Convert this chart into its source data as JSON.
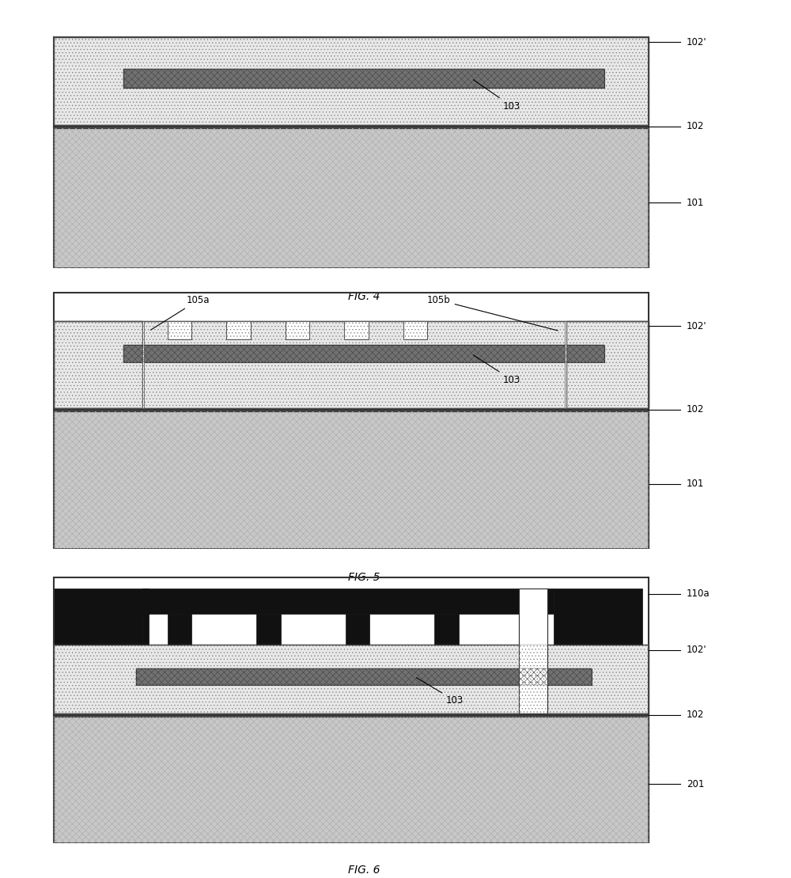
{
  "fig_width": 10.0,
  "fig_height": 11.1,
  "bg": "#ffffff",
  "substrate_face": "#c8c8c8",
  "substrate_hatch": "xxxx",
  "oxide_face": "#e8e8e8",
  "oxide_hatch": "....",
  "membrane_face": "#707070",
  "membrane_hatch": "xxxx",
  "black": "#111111",
  "thin_line": "#333333",
  "border_color": "#222222",
  "label_fontsize": 8.5,
  "fig4_caption": "FIG. 4",
  "fig5_caption": "FIG. 5",
  "fig6_caption": "FIG. 6"
}
